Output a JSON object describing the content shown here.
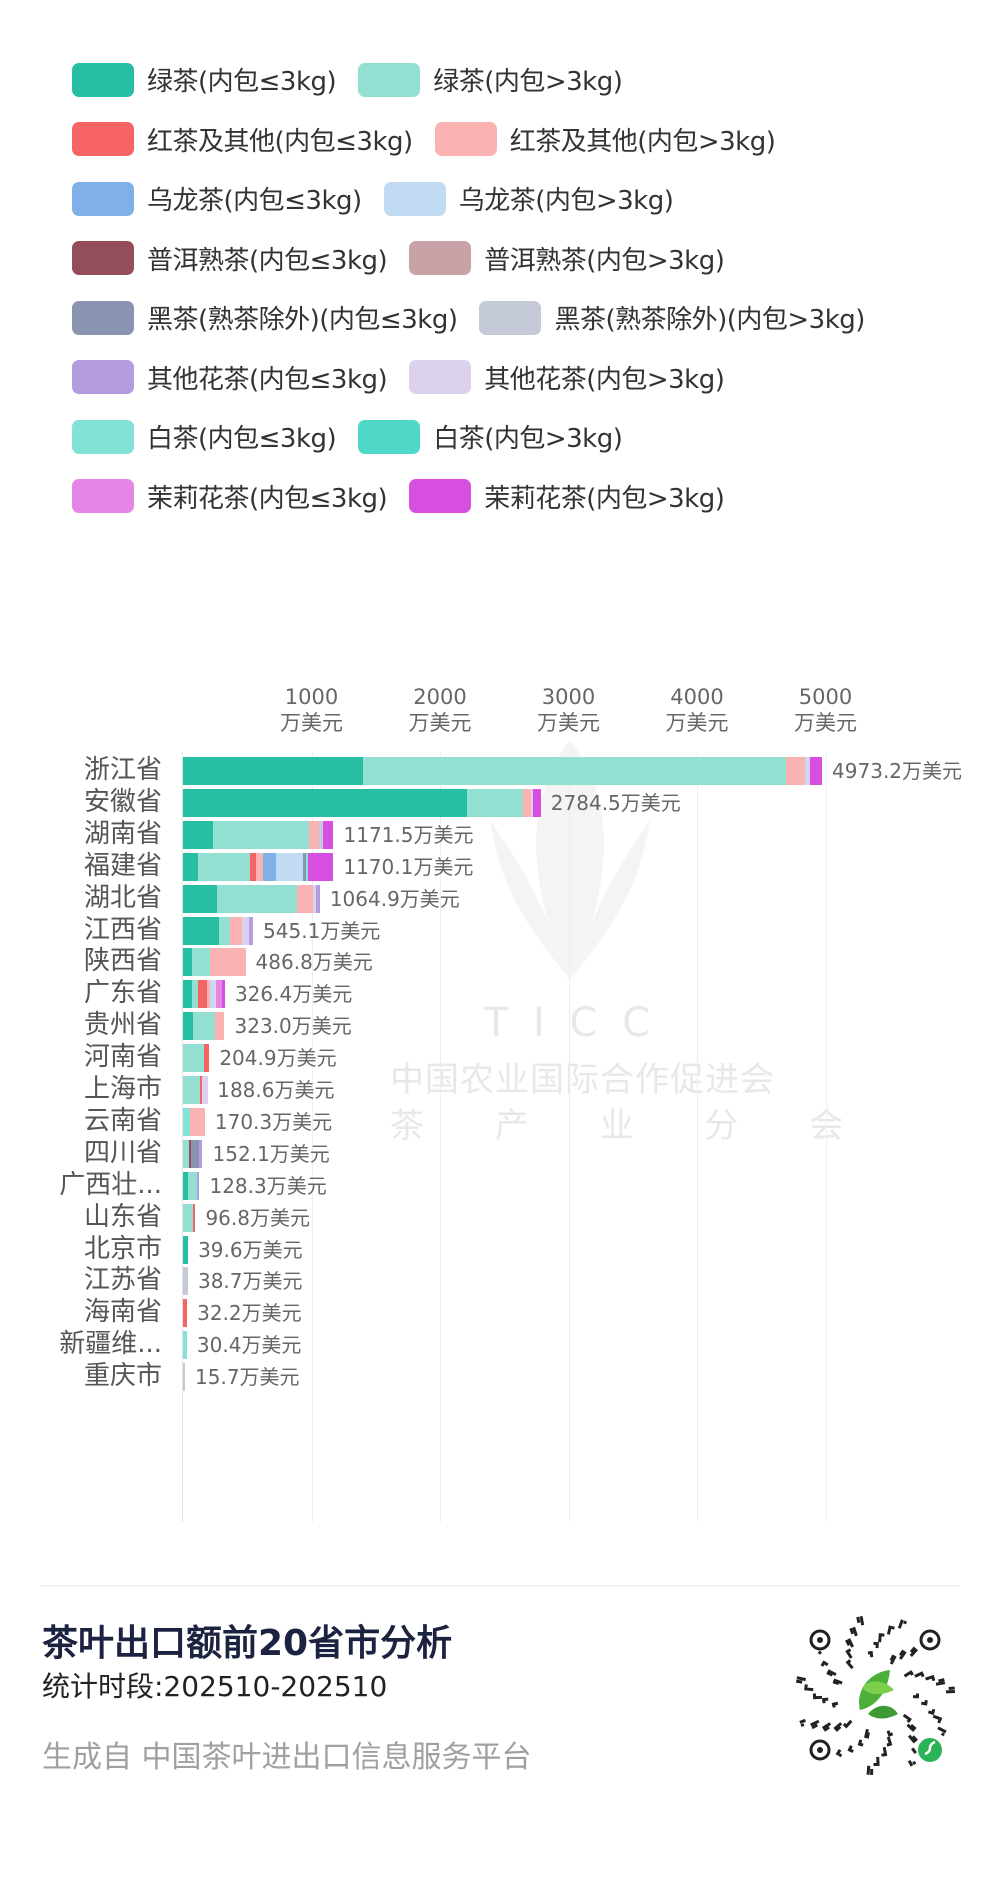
{
  "legend": {
    "rows": [
      [
        {
          "label": "绿茶(内包≤3kg)",
          "color": "#26bfa4"
        },
        {
          "label": "绿茶(内包>3kg)",
          "color": "#93e0d2"
        }
      ],
      [
        {
          "label": "红茶及其他(内包≤3kg)",
          "color": "#f76466"
        },
        {
          "label": "红茶及其他(内包>3kg)",
          "color": "#fbb2b3"
        }
      ],
      [
        {
          "label": "乌龙茶(内包≤3kg)",
          "color": "#7fb1e8"
        },
        {
          "label": "乌龙茶(内包>3kg)",
          "color": "#c1dbf2"
        }
      ],
      [
        {
          "label": "普洱熟茶(内包≤3kg)",
          "color": "#934d5b"
        },
        {
          "label": "普洱熟茶(内包>3kg)",
          "color": "#c9a2a8"
        }
      ],
      [
        {
          "label": "黑茶(熟茶除外)(内包≤3kg)",
          "color": "#8994b1"
        },
        {
          "label": "黑茶(熟茶除外)(内包>3kg)",
          "color": "#c5cad8"
        }
      ],
      [
        {
          "label": "其他花茶(内包≤3kg)",
          "color": "#b39ddf"
        },
        {
          "label": "其他花茶(内包>3kg)",
          "color": "#dcd2ef"
        }
      ],
      [
        {
          "label": "白茶(内包≤3kg)",
          "color": "#83e2d6"
        },
        {
          "label": "白茶(内包>3kg)",
          "color": "#4fd8c7"
        }
      ],
      [
        {
          "label": "茉莉花茶(内包≤3kg)",
          "color": "#e586e6"
        },
        {
          "label": "茉莉花茶(内包>3kg)",
          "color": "#d64fe0"
        }
      ]
    ]
  },
  "watermark": {
    "line1": "T I C C",
    "line2": "中国农业国际合作促进会",
    "line3": "茶 产 业 分 会"
  },
  "chart_data": {
    "type": "bar",
    "orientation": "horizontal",
    "stacked": true,
    "title": "茶叶出口额前20省市分析",
    "xlabel": "",
    "ylabel": "",
    "unit": "万美元",
    "xlim": [
      0,
      5000
    ],
    "xticks": [
      {
        "value": 1000,
        "line1": "1000",
        "line2": "万美元"
      },
      {
        "value": 2000,
        "line1": "2000",
        "line2": "万美元"
      },
      {
        "value": 3000,
        "line1": "3000",
        "line2": "万美元"
      },
      {
        "value": 4000,
        "line1": "4000",
        "line2": "万美元"
      },
      {
        "value": 5000,
        "line1": "5000",
        "line2": "万美元"
      }
    ],
    "grid": true,
    "legend_position": "top",
    "series_names": [
      "绿茶(内包≤3kg)",
      "绿茶(内包>3kg)",
      "红茶及其他(内包≤3kg)",
      "红茶及其他(内包>3kg)",
      "乌龙茶(内包≤3kg)",
      "乌龙茶(内包>3kg)",
      "普洱熟茶(内包≤3kg)",
      "普洱熟茶(内包>3kg)",
      "黑茶(熟茶除外)(内包≤3kg)",
      "黑茶(熟茶除外)(内包>3kg)",
      "其他花茶(内包≤3kg)",
      "其他花茶(内包>3kg)",
      "白茶(内包≤3kg)",
      "白茶(内包>3kg)",
      "茉莉花茶(内包≤3kg)",
      "茉莉花茶(内包>3kg)"
    ],
    "categories": [
      "浙江省",
      "安徽省",
      "湖南省",
      "福建省",
      "湖北省",
      "江西省",
      "陕西省",
      "广东省",
      "贵州省",
      "河南省",
      "上海市",
      "云南省",
      "四川省",
      "广西壮...",
      "山东省",
      "北京市",
      "江苏省",
      "海南省",
      "新疆维...",
      "重庆市"
    ],
    "totals": [
      4973.2,
      2784.5,
      1171.5,
      1170.1,
      1064.9,
      545.1,
      486.8,
      326.4,
      323.0,
      204.9,
      188.6,
      170.3,
      152.1,
      128.3,
      96.8,
      39.6,
      38.7,
      32.2,
      30.4,
      15.7
    ],
    "total_labels": [
      "4973.2万美元",
      "2784.5万美元",
      "1171.5万美元",
      "1170.1万美元",
      "1064.9万美元",
      "545.1万美元",
      "486.8万美元",
      "326.4万美元",
      "323.0万美元",
      "204.9万美元",
      "188.6万美元",
      "170.3万美元",
      "152.1万美元",
      "128.3万美元",
      "96.8万美元",
      "39.6万美元",
      "38.7万美元",
      "32.2万美元",
      "30.4万美元",
      "15.7万美元"
    ],
    "segments_estimated": [
      [
        {
          "s": 0,
          "v": 1400
        },
        {
          "s": 1,
          "v": 3290
        },
        {
          "s": 3,
          "v": 150
        },
        {
          "s": 5,
          "v": 20
        },
        {
          "s": 11,
          "v": 20
        },
        {
          "s": 15,
          "v": 93
        }
      ],
      [
        {
          "s": 0,
          "v": 2211
        },
        {
          "s": 1,
          "v": 437
        },
        {
          "s": 3,
          "v": 62
        },
        {
          "s": 11,
          "v": 10
        },
        {
          "s": 15,
          "v": 64
        }
      ],
      [
        {
          "s": 0,
          "v": 234
        },
        {
          "s": 1,
          "v": 750
        },
        {
          "s": 3,
          "v": 78
        },
        {
          "s": 9,
          "v": 31
        },
        {
          "s": 15,
          "v": 78
        }
      ],
      [
        {
          "s": 0,
          "v": 117
        },
        {
          "s": 1,
          "v": 406
        },
        {
          "s": 2,
          "v": 47
        },
        {
          "s": 3,
          "v": 55
        },
        {
          "s": 4,
          "v": 102
        },
        {
          "s": 5,
          "v": 211
        },
        {
          "s": 8,
          "v": 16
        },
        {
          "s": 12,
          "v": 16
        },
        {
          "s": 15,
          "v": 200
        }
      ],
      [
        {
          "s": 0,
          "v": 265
        },
        {
          "s": 1,
          "v": 625
        },
        {
          "s": 3,
          "v": 125
        },
        {
          "s": 11,
          "v": 20
        },
        {
          "s": 10,
          "v": 30
        }
      ],
      [
        {
          "s": 0,
          "v": 281
        },
        {
          "s": 1,
          "v": 86
        },
        {
          "s": 3,
          "v": 94
        },
        {
          "s": 11,
          "v": 53
        },
        {
          "s": 10,
          "v": 31
        }
      ],
      [
        {
          "s": 0,
          "v": 70
        },
        {
          "s": 1,
          "v": 140
        },
        {
          "s": 3,
          "v": 277
        }
      ],
      [
        {
          "s": 0,
          "v": 70
        },
        {
          "s": 1,
          "v": 47
        },
        {
          "s": 2,
          "v": 70
        },
        {
          "s": 3,
          "v": 23
        },
        {
          "s": 5,
          "v": 23
        },
        {
          "s": 11,
          "v": 23
        },
        {
          "s": 14,
          "v": 47
        },
        {
          "s": 15,
          "v": 23
        }
      ],
      [
        {
          "s": 0,
          "v": 78
        },
        {
          "s": 1,
          "v": 172
        },
        {
          "s": 3,
          "v": 73
        }
      ],
      [
        {
          "s": 1,
          "v": 164
        },
        {
          "s": 2,
          "v": 41
        }
      ],
      [
        {
          "s": 1,
          "v": 133
        },
        {
          "s": 2,
          "v": 8
        },
        {
          "s": 11,
          "v": 48
        }
      ],
      [
        {
          "s": 12,
          "v": 55
        },
        {
          "s": 3,
          "v": 115
        }
      ],
      [
        {
          "s": 1,
          "v": 47
        },
        {
          "s": 6,
          "v": 12
        },
        {
          "s": 8,
          "v": 62
        },
        {
          "s": 10,
          "v": 31
        }
      ],
      [
        {
          "s": 0,
          "v": 39
        },
        {
          "s": 1,
          "v": 69
        },
        {
          "s": 10,
          "v": 20
        }
      ],
      [
        {
          "s": 1,
          "v": 78
        },
        {
          "s": 2,
          "v": 19
        }
      ],
      [
        {
          "s": 0,
          "v": 40
        }
      ],
      [
        {
          "s": 9,
          "v": 39
        }
      ],
      [
        {
          "s": 2,
          "v": 32
        }
      ],
      [
        {
          "s": 12,
          "v": 30
        }
      ],
      [
        {
          "s": 9,
          "v": 16
        }
      ]
    ]
  },
  "footer": {
    "title": "茶叶出口额前20省市分析",
    "period": "统计时段:202510-202510",
    "source": "生成自 中国茶叶进出口信息服务平台",
    "qr_icon": "mini-program-qr-code"
  }
}
